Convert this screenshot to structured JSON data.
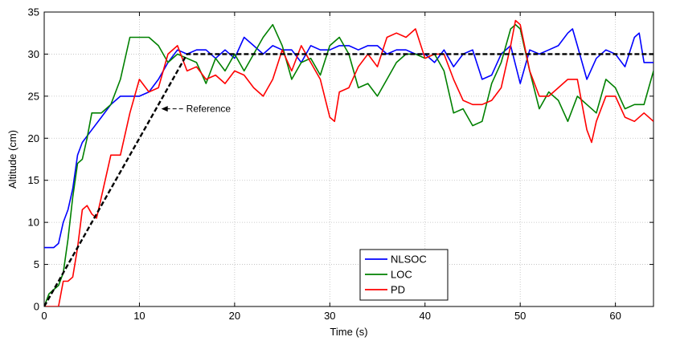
{
  "chart_data": {
    "type": "line",
    "title": "",
    "xlabel": "Time (s)",
    "ylabel": "Altitude (cm)",
    "xlim": [
      0,
      64
    ],
    "ylim": [
      0,
      35
    ],
    "xticks": [
      0,
      10,
      20,
      30,
      40,
      50,
      60
    ],
    "yticks": [
      0,
      5,
      10,
      15,
      20,
      25,
      30,
      35
    ],
    "xtick_labels": [
      "0",
      "10",
      "20",
      "30",
      "40",
      "50",
      "60"
    ],
    "ytick_labels": [
      "0",
      "5",
      "10",
      "15",
      "20",
      "25",
      "30",
      "35"
    ],
    "grid": true,
    "legend_position": "bottom-center",
    "annotation": {
      "text": "Reference",
      "target": [
        12.3,
        23.5
      ]
    },
    "reference": {
      "color": "#000000",
      "x": [
        0,
        15,
        64
      ],
      "y": [
        0,
        30,
        30
      ]
    },
    "series": [
      {
        "name": "NLSOC",
        "color": "#0000ff",
        "x": [
          0,
          1.0,
          1.5,
          2,
          2.5,
          3,
          3.5,
          4,
          5,
          6,
          7,
          8,
          9,
          10,
          11,
          12,
          13,
          14,
          15,
          16,
          17,
          18,
          19,
          20,
          21,
          22,
          23,
          24,
          25,
          26,
          27,
          28,
          29,
          30,
          31,
          32,
          33,
          34,
          35,
          36,
          37,
          38,
          39,
          40,
          41,
          42,
          43,
          44,
          45,
          46,
          47,
          48,
          49,
          50,
          51,
          52,
          53,
          54,
          55,
          55.5,
          56,
          57,
          58,
          59,
          60,
          61,
          62,
          62.5,
          63,
          64
        ],
        "y": [
          7,
          7,
          7.5,
          10,
          11.5,
          14,
          18,
          19.5,
          21,
          22.5,
          24,
          25,
          25,
          25,
          25.5,
          27,
          29,
          30.5,
          30,
          30.5,
          30.5,
          29.5,
          30.5,
          29.5,
          32,
          31,
          30,
          31,
          30.5,
          30.5,
          29,
          31,
          30.5,
          30.5,
          31,
          31,
          30.5,
          31,
          31,
          30,
          30.5,
          30.5,
          30,
          30,
          29,
          30.5,
          28.5,
          30,
          30.5,
          27,
          27.5,
          30,
          31,
          26.5,
          30.5,
          30,
          30.5,
          31,
          32.5,
          33,
          31,
          27,
          29.5,
          30.5,
          30,
          28.5,
          32,
          32.5,
          29,
          29
        ]
      },
      {
        "name": "LOC",
        "color": "#008000",
        "x": [
          0,
          0.5,
          1,
          1.5,
          2,
          2.5,
          3,
          3.5,
          4,
          4.5,
          5,
          6,
          7,
          8,
          9,
          10,
          11,
          12,
          13,
          14,
          15,
          16,
          17,
          18,
          19,
          20,
          21,
          22,
          23,
          24,
          25,
          26,
          27,
          28,
          29,
          30,
          31,
          32,
          33,
          34,
          35,
          36,
          37,
          38,
          39,
          40,
          41,
          42,
          43,
          44,
          45,
          46,
          47,
          48,
          49,
          49.5,
          50,
          51,
          52,
          53,
          54,
          55,
          56,
          57,
          58,
          59,
          60,
          61,
          62,
          63,
          64
        ],
        "y": [
          0,
          1.5,
          2,
          2.5,
          4,
          8,
          13,
          17,
          17.5,
          20,
          23,
          23,
          24,
          27,
          32,
          32,
          32,
          31,
          29,
          30,
          29.5,
          29,
          26.5,
          29.5,
          28,
          30,
          28,
          30,
          32,
          33.5,
          31,
          27,
          29,
          29.5,
          27.5,
          31,
          32,
          30,
          26,
          26.5,
          25,
          27,
          29,
          30,
          30,
          29.5,
          30,
          28,
          23,
          23.5,
          21.5,
          22,
          26.5,
          29,
          33,
          33.5,
          33,
          28,
          23.5,
          25.5,
          24.5,
          22,
          25,
          24,
          23,
          27,
          26,
          23.5,
          24,
          24,
          28
        ]
      },
      {
        "name": "PD",
        "color": "#ff0000",
        "x": [
          0,
          1.0,
          1.5,
          2,
          2.5,
          3,
          3.5,
          4,
          4.5,
          5,
          5.5,
          6,
          7,
          8,
          9,
          10,
          11,
          12,
          13,
          14,
          15,
          16,
          17,
          18,
          19,
          20,
          21,
          22,
          23,
          24,
          25,
          26,
          27,
          28,
          29,
          30,
          30.5,
          31,
          32,
          33,
          34,
          35,
          36,
          37,
          38,
          39,
          40,
          41,
          42,
          43,
          44,
          45,
          46,
          47,
          48,
          49,
          49.5,
          50,
          51,
          52,
          53,
          54,
          55,
          56,
          57,
          57.5,
          58,
          59,
          60,
          61,
          62,
          63,
          64
        ],
        "y": [
          0,
          0,
          0,
          3,
          3,
          3.5,
          7,
          11.5,
          12,
          11,
          10.5,
          13,
          18,
          18,
          23,
          27,
          25.5,
          26,
          30,
          31,
          28,
          28.5,
          27,
          27.5,
          26.5,
          28,
          27.5,
          26,
          25,
          27,
          30.5,
          28,
          31,
          29,
          27,
          22.5,
          22,
          25.5,
          26,
          28.5,
          30,
          28.5,
          32,
          32.5,
          32,
          33,
          29.5,
          30,
          30,
          27,
          24.5,
          24,
          24,
          24.5,
          26,
          31,
          34,
          33.5,
          28,
          25,
          25,
          26,
          27,
          27,
          21,
          19.5,
          22,
          25,
          25,
          22.5,
          22,
          23,
          22
        ]
      }
    ]
  }
}
